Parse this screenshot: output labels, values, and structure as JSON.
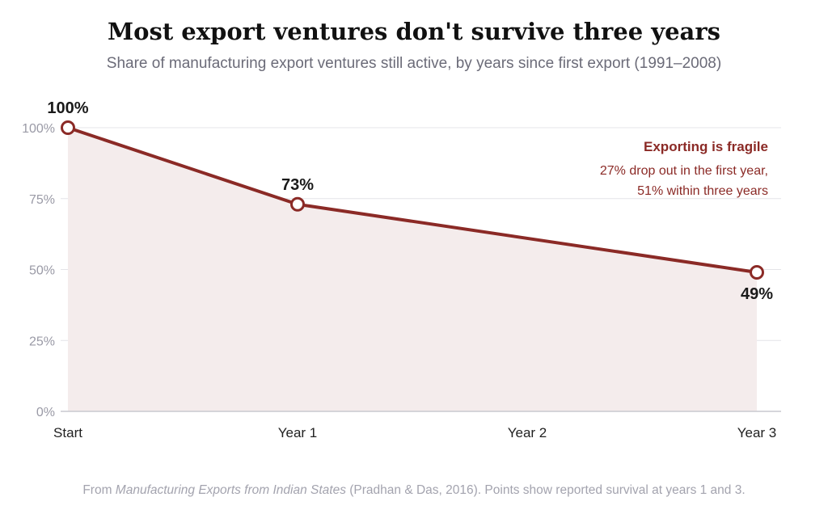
{
  "colors": {
    "line": "#8b2a26",
    "area": "#f4ecec",
    "grid": "#e4e4e8",
    "axis": "#c9c9cf",
    "annotation": "#8b2a26"
  },
  "header": {
    "title": "Most export ventures don't survive three years",
    "subtitle": "Share of manufacturing export ventures still active, by years since first export (1991–2008)"
  },
  "annotation": {
    "title": "Exporting is fragile",
    "lines": [
      "27% drop out in the first year,",
      "51% within three years"
    ]
  },
  "footer": {
    "prefix": "From ",
    "source_title": "Manufacturing Exports from Indian States",
    "suffix": " (Pradhan & Das, 2016). Points show reported survival at years 1 and 3."
  },
  "chart_data": {
    "type": "area",
    "categories": [
      "Start",
      "Year 1",
      "Year 2",
      "Year 3"
    ],
    "x": [
      0,
      1,
      2,
      3
    ],
    "y_ticks": [
      0,
      25,
      50,
      75,
      100
    ],
    "y_tick_labels": [
      "0%",
      "25%",
      "50%",
      "75%",
      "100%"
    ],
    "ylim": [
      0,
      100
    ],
    "xlim": [
      0,
      3
    ],
    "grid": true,
    "series": [
      {
        "points": [
          {
            "x": 0,
            "y": 100,
            "label": "100%"
          },
          {
            "x": 1,
            "y": 73,
            "label": "73%"
          },
          {
            "x": 3,
            "y": 49,
            "label": "49%"
          }
        ]
      }
    ]
  }
}
